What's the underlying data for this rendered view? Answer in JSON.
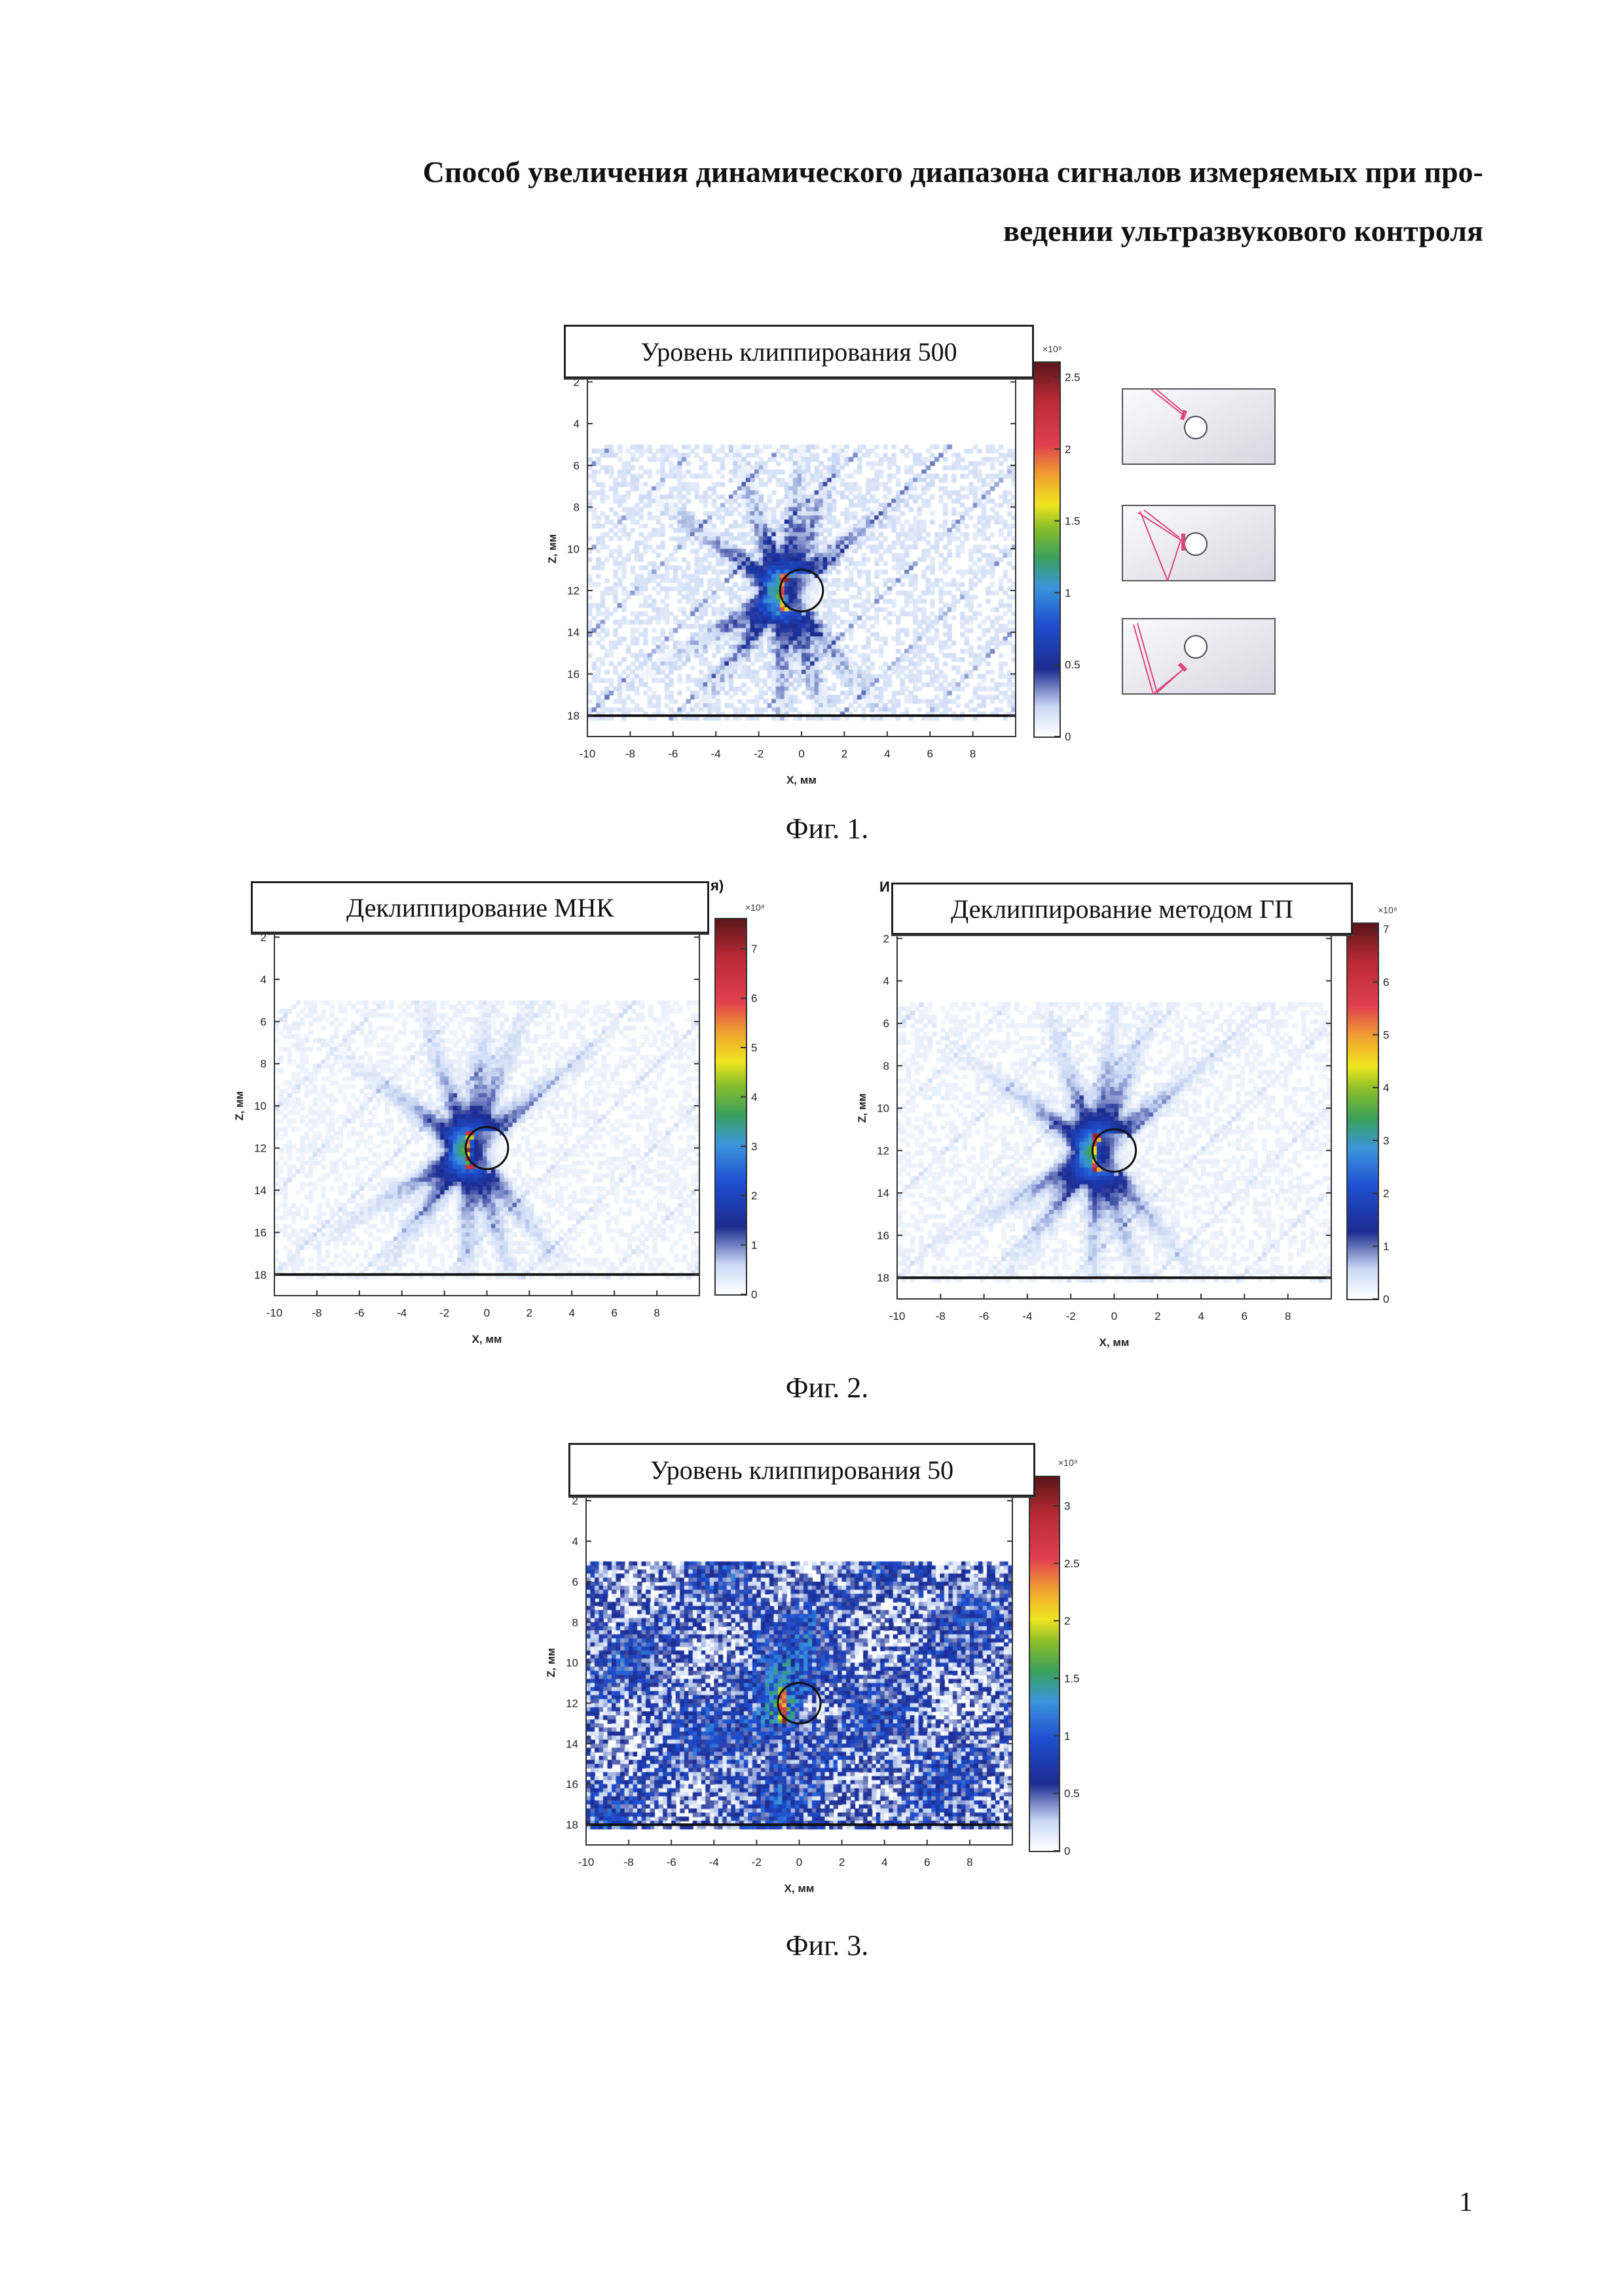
{
  "document": {
    "title_line1": "Способ увеличения динамического диапазона сигналов измеряемых при про-",
    "title_line2": "ведении ультразвукового контроля",
    "page_number": "1"
  },
  "colors": {
    "colormap": [
      [
        0,
        "#ffffff"
      ],
      [
        0.08,
        "#c9d8f4"
      ],
      [
        0.18,
        "#1c2b8f"
      ],
      [
        0.3,
        "#1f4fd0"
      ],
      [
        0.4,
        "#3b95dc"
      ],
      [
        0.48,
        "#3aa05a"
      ],
      [
        0.56,
        "#8cbf2a"
      ],
      [
        0.62,
        "#f0e520"
      ],
      [
        0.7,
        "#f0a030"
      ],
      [
        0.78,
        "#e0404e"
      ],
      [
        0.9,
        "#b82a35"
      ],
      [
        1,
        "#5a1518"
      ]
    ],
    "arrow": "#e0457a"
  },
  "figures": [
    {
      "caption": "Фиг. 1.",
      "panels": [
        {
          "title": "Уровень клиппирования 500"
        }
      ]
    },
    {
      "caption": "Фиг. 2.",
      "panels": [
        {
          "title": "Деклиппирование МНК",
          "fragment": "я)"
        },
        {
          "title": "Деклиппирование методом ГП",
          "fragment": "И"
        }
      ]
    },
    {
      "caption": "Фиг. 3.",
      "panels": [
        {
          "title": "Уровень клиппирования 50"
        }
      ]
    }
  ],
  "chart_data": [
    {
      "type": "heatmap",
      "title": "Уровень клиппирования 500",
      "xlabel": "X, мм",
      "ylabel": "Z, мм",
      "xlim": [
        -10,
        10
      ],
      "ylim": [
        1.8,
        19
      ],
      "y_inverted": true,
      "xticks": [
        "-10",
        "-8",
        "-6",
        "-4",
        "-2",
        "0",
        "2",
        "4",
        "6",
        "8"
      ],
      "yticks": [
        "2",
        "4",
        "6",
        "8",
        "10",
        "12",
        "14",
        "16",
        "18"
      ],
      "colorbar": {
        "ticks": [
          "0",
          "0.5",
          "1",
          "1.5",
          "2",
          "2.5"
        ],
        "tick_values": [
          0,
          0.5,
          1,
          1.5,
          2,
          2.5
        ],
        "max": 2.6,
        "exponent": "×10⁹"
      },
      "defect_circle": {
        "x": 0,
        "z": 12,
        "r": 1
      },
      "bottom_line_z": 18,
      "data_z_start": 5,
      "peak": {
        "x": -0.9,
        "z": 12
      },
      "background": "low"
    },
    {
      "type": "heatmap",
      "title": "Деклиппирование МНК",
      "xlabel": "X, мм",
      "ylabel": "Z, мм",
      "xlim": [
        -10,
        10
      ],
      "ylim": [
        1.8,
        19
      ],
      "y_inverted": true,
      "xticks": [
        "-10",
        "-8",
        "-6",
        "-4",
        "-2",
        "0",
        "2",
        "4",
        "6",
        "8"
      ],
      "yticks": [
        "2",
        "4",
        "6",
        "8",
        "10",
        "12",
        "14",
        "16",
        "18"
      ],
      "colorbar": {
        "ticks": [
          "0",
          "1",
          "2",
          "3",
          "4",
          "5",
          "6",
          "7"
        ],
        "tick_values": [
          0,
          1,
          2,
          3,
          4,
          5,
          6,
          7
        ],
        "max": 7.6,
        "exponent": "×10⁸"
      },
      "defect_circle": {
        "x": 0,
        "z": 12,
        "r": 1
      },
      "bottom_line_z": 18,
      "data_z_start": 5,
      "peak": {
        "x": -0.9,
        "z": 12
      },
      "background": "very-low"
    },
    {
      "type": "heatmap",
      "title": "Деклиппирование методом ГП",
      "xlabel": "X, мм",
      "ylabel": "Z, мм",
      "xlim": [
        -10,
        10
      ],
      "ylim": [
        1.8,
        19
      ],
      "y_inverted": true,
      "xticks": [
        "-10",
        "-8",
        "-6",
        "-4",
        "-2",
        "0",
        "2",
        "4",
        "6",
        "8"
      ],
      "yticks": [
        "2",
        "4",
        "6",
        "8",
        "10",
        "12",
        "14",
        "16",
        "18"
      ],
      "colorbar": {
        "ticks": [
          "0",
          "1",
          "2",
          "3",
          "4",
          "5",
          "6",
          "7"
        ],
        "tick_values": [
          0,
          1,
          2,
          3,
          4,
          5,
          6,
          7
        ],
        "max": 7.1,
        "exponent": "×10⁸"
      },
      "defect_circle": {
        "x": 0,
        "z": 12,
        "r": 1
      },
      "bottom_line_z": 18,
      "data_z_start": 5,
      "peak": {
        "x": -0.9,
        "z": 12
      },
      "background": "very-low"
    },
    {
      "type": "heatmap",
      "title": "Уровень клиппирования 50",
      "xlabel": "X, мм",
      "ylabel": "Z, мм",
      "xlim": [
        -10,
        10
      ],
      "ylim": [
        1.8,
        19
      ],
      "y_inverted": true,
      "xticks": [
        "-10",
        "-8",
        "-6",
        "-4",
        "-2",
        "0",
        "2",
        "4",
        "6",
        "8"
      ],
      "yticks": [
        "2",
        "4",
        "6",
        "8",
        "10",
        "12",
        "14",
        "16",
        "18"
      ],
      "colorbar": {
        "ticks": [
          "0",
          "0.5",
          "1",
          "1.5",
          "2",
          "2.5",
          "3"
        ],
        "tick_values": [
          0,
          0.5,
          1,
          1.5,
          2,
          2.5,
          3
        ],
        "max": 3.25,
        "exponent": "×10⁹"
      },
      "defect_circle": {
        "x": 0,
        "z": 12,
        "r": 1
      },
      "bottom_line_z": 18,
      "data_z_start": 5,
      "peak": {
        "x": -0.9,
        "z": 12
      },
      "background": "high"
    }
  ]
}
